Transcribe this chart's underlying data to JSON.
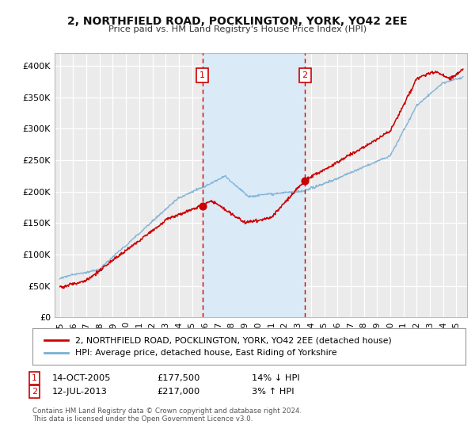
{
  "title": "2, NORTHFIELD ROAD, POCKLINGTON, YORK, YO42 2EE",
  "subtitle": "Price paid vs. HM Land Registry's House Price Index (HPI)",
  "bg_color": "#ffffff",
  "plot_bg_color": "#ebebeb",
  "shade_color": "#daeaf7",
  "grid_color": "#ffffff",
  "ylim": [
    0,
    420000
  ],
  "yticks": [
    0,
    50000,
    100000,
    150000,
    200000,
    250000,
    300000,
    350000,
    400000
  ],
  "ytick_labels": [
    "£0",
    "£50K",
    "£100K",
    "£150K",
    "£200K",
    "£250K",
    "£300K",
    "£350K",
    "£400K"
  ],
  "xlim_start": 1994.6,
  "xlim_end": 2025.8,
  "xticks": [
    1995,
    1996,
    1997,
    1998,
    1999,
    2000,
    2001,
    2002,
    2003,
    2004,
    2005,
    2006,
    2007,
    2008,
    2009,
    2010,
    2011,
    2012,
    2013,
    2014,
    2015,
    2016,
    2017,
    2018,
    2019,
    2020,
    2021,
    2022,
    2023,
    2024,
    2025
  ],
  "transaction1_x": 2005.79,
  "transaction1_y": 177500,
  "transaction1_label": "1",
  "transaction2_x": 2013.54,
  "transaction2_y": 217000,
  "transaction2_label": "2",
  "red_line_color": "#cc0000",
  "blue_line_color": "#7aafd4",
  "legend_red_label": "2, NORTHFIELD ROAD, POCKLINGTON, YORK, YO42 2EE (detached house)",
  "legend_blue_label": "HPI: Average price, detached house, East Riding of Yorkshire",
  "footnote": "Contains HM Land Registry data © Crown copyright and database right 2024.\nThis data is licensed under the Open Government Licence v3.0."
}
